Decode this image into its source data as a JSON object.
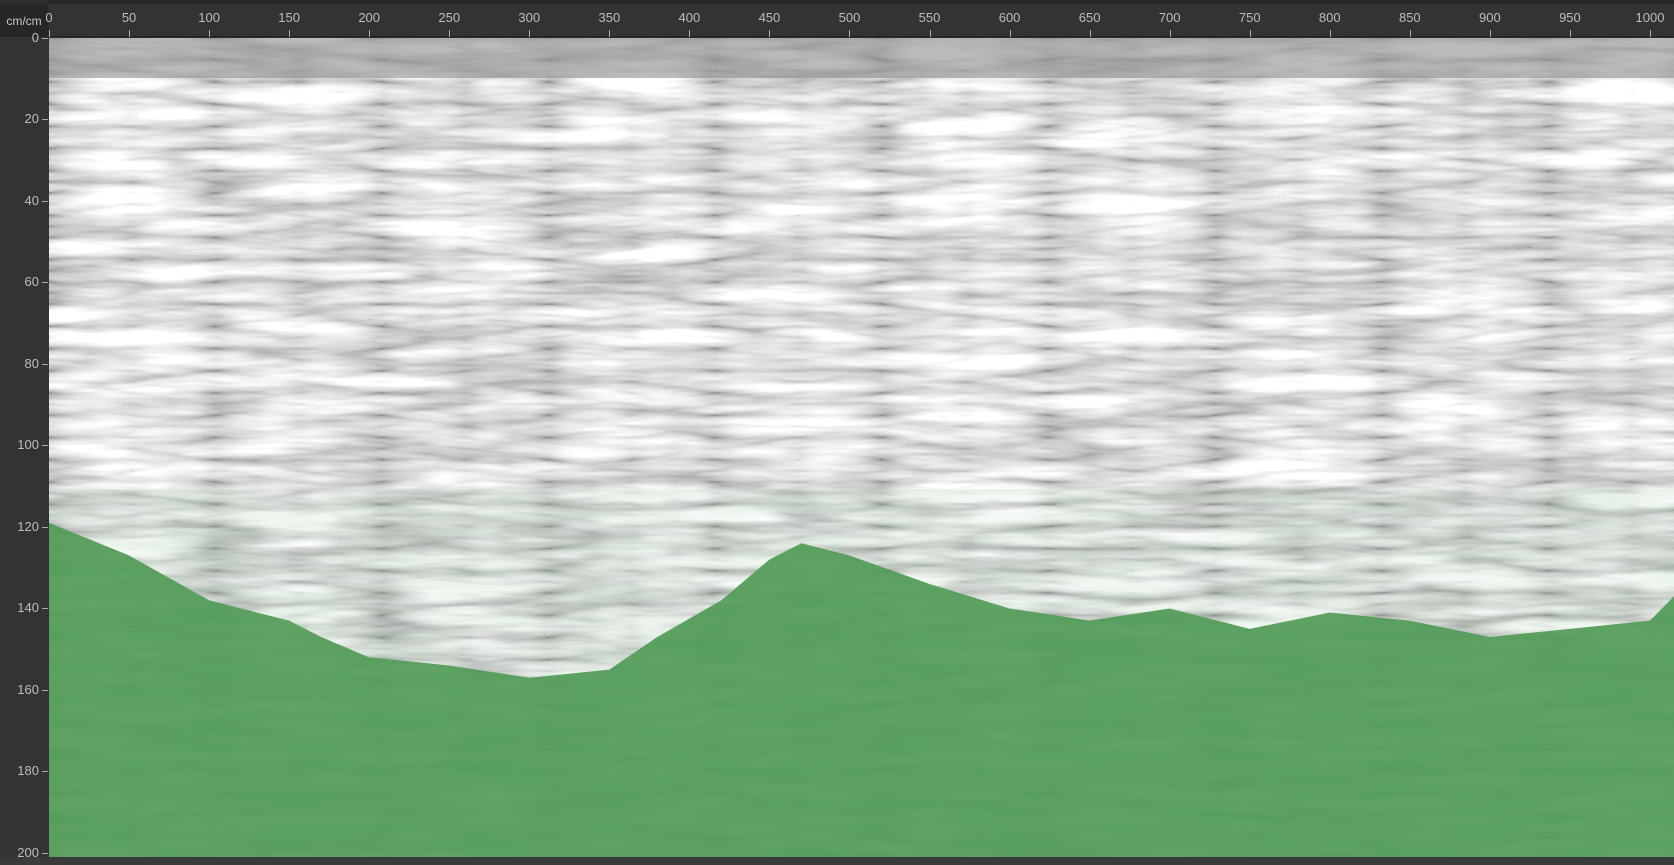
{
  "ruler": {
    "unit_label": "cm/cm",
    "x_ticks": [
      0,
      50,
      100,
      150,
      200,
      250,
      300,
      350,
      400,
      450,
      500,
      550,
      600,
      650,
      700,
      750,
      800,
      850,
      900,
      950,
      1000
    ],
    "y_ticks": [
      0,
      20,
      40,
      60,
      80,
      100,
      120,
      140,
      160,
      180,
      200
    ],
    "x_range": [
      0,
      1015
    ],
    "y_range": [
      0,
      201
    ]
  },
  "radargram": {
    "colormap": "grayscale",
    "mask_color": "#4f9a55",
    "mask_boundary": [
      [
        0,
        119
      ],
      [
        50,
        127
      ],
      [
        100,
        138
      ],
      [
        150,
        143
      ],
      [
        170,
        147
      ],
      [
        200,
        152
      ],
      [
        250,
        154
      ],
      [
        300,
        157
      ],
      [
        350,
        155
      ],
      [
        380,
        147
      ],
      [
        420,
        138
      ],
      [
        450,
        128
      ],
      [
        470,
        124
      ],
      [
        500,
        127
      ],
      [
        550,
        134
      ],
      [
        600,
        140
      ],
      [
        650,
        143
      ],
      [
        700,
        140
      ],
      [
        750,
        145
      ],
      [
        800,
        141
      ],
      [
        850,
        143
      ],
      [
        900,
        147
      ],
      [
        950,
        145
      ],
      [
        1000,
        143
      ],
      [
        1015,
        137
      ]
    ]
  }
}
